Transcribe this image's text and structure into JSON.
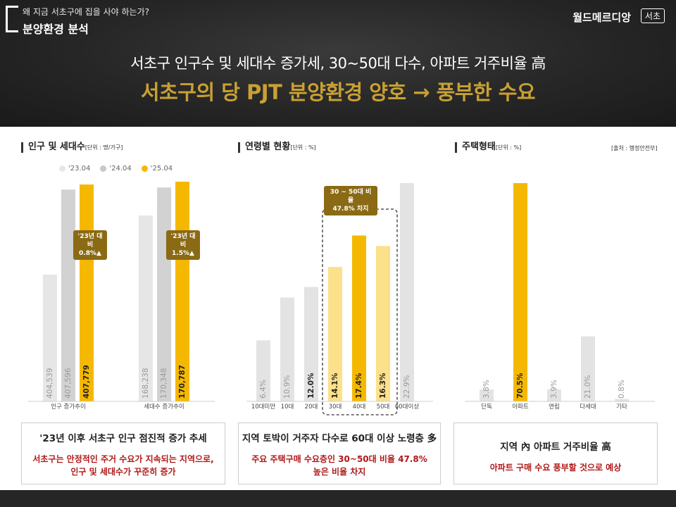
{
  "header": {
    "question": "왜 지금 서초구에 집을 사야 하는가?",
    "section": "분양환경 분석",
    "brand": "월드메르디앙",
    "brand_badge": "서초"
  },
  "headline": {
    "line1": "서초구 인구수 및 세대수 증가세, 30~50대 다수, 아파트 거주비율 高",
    "line2": "서초구의 당 PJT 분양환경 양호 → 풍부한 수요"
  },
  "colors": {
    "y2023": "#e6e6e6",
    "y2024": "#d2d2d2",
    "y2025": "#f5b800",
    "highlight_light": "#fce08a",
    "highlight": "#f5b800",
    "gray": "#e3e3e3",
    "callout": "#8a6a14"
  },
  "chart_data": [
    {
      "type": "bar",
      "title": "인구 및 세대수",
      "unit": "[단위 : 명/가구]",
      "legend": [
        "'23.04",
        "'24.04",
        "'25.04"
      ],
      "categories": [
        "인구 증가추이",
        "세대수 증가추이"
      ],
      "series": [
        {
          "name": "'23.04",
          "values": [
            404539,
            168238
          ],
          "labels": [
            "404,539",
            "168,238"
          ]
        },
        {
          "name": "'24.04",
          "values": [
            407596,
            170348
          ],
          "labels": [
            "407,596",
            "170,348"
          ]
        },
        {
          "name": "'25.04",
          "values": [
            407779,
            170787
          ],
          "labels": [
            "407,779",
            "170,787"
          ]
        }
      ],
      "callouts": [
        "'23년 대비\n0.8%▲",
        "'23년 대비\n1.5%▲"
      ]
    },
    {
      "type": "bar",
      "title": "연령별 현황",
      "unit": "[단위 : %]",
      "categories": [
        "10대미만",
        "10대",
        "20대",
        "30대",
        "40대",
        "50대",
        "60대이상"
      ],
      "values": [
        6.4,
        10.9,
        12.0,
        14.1,
        17.4,
        16.3,
        22.9
      ],
      "labels": [
        "6.4%",
        "10.9%",
        "12.0%",
        "14.1%",
        "17.4%",
        "16.3%",
        "22.9%"
      ],
      "callout": "30 ~ 50대 비율\n47.8% 차지"
    },
    {
      "type": "bar",
      "title": "주택형태",
      "unit": "[단위 : %]",
      "source": "[출처 : 행정안전부]",
      "categories": [
        "단독",
        "아파트",
        "연립",
        "다세대",
        "기타"
      ],
      "values": [
        3.8,
        70.5,
        3.9,
        21.0,
        0.8
      ],
      "labels": [
        "3.8%",
        "70.5%",
        "3.9%",
        "21.0%",
        "0.8%"
      ]
    }
  ],
  "summaries": [
    {
      "title": "'23년 이후 서초구 인구 점진적 증가 추세",
      "body1": "서초구는 안정적인 주거 수요가 지속되는 지역으로,",
      "body2": "인구 및 세대수가 꾸준히 증가"
    },
    {
      "title": "지역 토박이 거주자 다수로 60대 이상 노령층 多",
      "body1": "주요 주택구매 수요층인 30~50대 비율 47.8%",
      "body2": "높은 비율 차지"
    },
    {
      "title": "지역 內 아파트 거주비율 高",
      "body1": "아파트 구매 수요 풍부할 것으로 예상",
      "body2": ""
    }
  ]
}
